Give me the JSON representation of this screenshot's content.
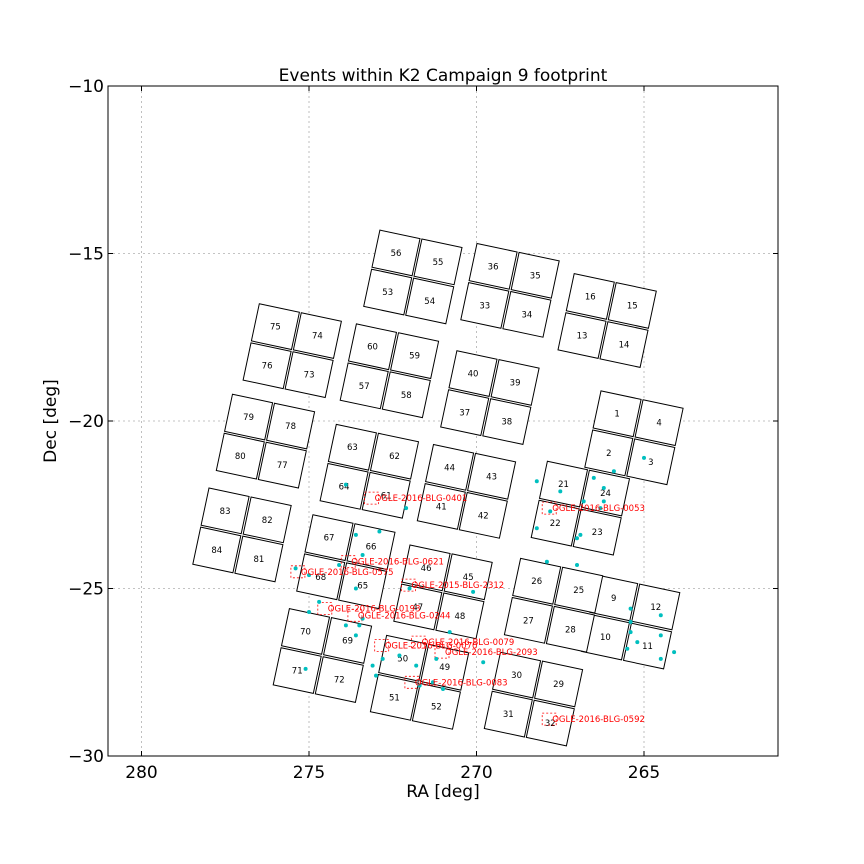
{
  "chart_data": {
    "type": "scatter",
    "title": "Events within K2 Campaign 9 footprint",
    "xlabel": "RA [deg]",
    "ylabel": "Dec [deg]",
    "xlim": [
      281,
      261
    ],
    "ylim": [
      -30,
      -10
    ],
    "xticks": [
      "280",
      "275",
      "270",
      "265"
    ],
    "yticks": [
      "−30",
      "−25",
      "−20",
      "−15",
      "−10"
    ],
    "xtick_values": [
      280,
      275,
      270,
      265
    ],
    "ytick_values": [
      -30,
      -25,
      -20,
      -15,
      -10
    ],
    "grid": true,
    "colors": {
      "chip_edge": "#000000",
      "event_point": "#00bfbf",
      "event_label": "#ff0000"
    },
    "modules": [
      {
        "ra": 265.3,
        "dec": -20.5,
        "chips": [
          {
            "id": "1",
            "q": "tl"
          },
          {
            "id": "2",
            "q": "bl"
          },
          {
            "id": "3",
            "q": "br"
          },
          {
            "id": "4",
            "q": "tr"
          }
        ]
      },
      {
        "ra": 265.4,
        "dec": -26.0,
        "chips": [
          {
            "id": "9",
            "q": "tl"
          },
          {
            "id": "10",
            "q": "bl"
          },
          {
            "id": "11",
            "q": "br"
          },
          {
            "id": "12",
            "q": "tr"
          }
        ]
      },
      {
        "ra": 266.1,
        "dec": -17.0,
        "chips": [
          {
            "id": "16",
            "q": "tl"
          },
          {
            "id": "13",
            "q": "bl"
          },
          {
            "id": "14",
            "q": "br"
          },
          {
            "id": "15",
            "q": "tr"
          }
        ]
      },
      {
        "ra": 266.9,
        "dec": -22.6,
        "chips": [
          {
            "id": "21",
            "q": "tl"
          },
          {
            "id": "22",
            "q": "bl"
          },
          {
            "id": "23",
            "q": "br"
          },
          {
            "id": "24",
            "q": "tr"
          }
        ]
      },
      {
        "ra": 267.7,
        "dec": -25.5,
        "chips": [
          {
            "id": "26",
            "q": "tl"
          },
          {
            "id": "27",
            "q": "bl"
          },
          {
            "id": "28",
            "q": "br"
          },
          {
            "id": "25",
            "q": "tr"
          }
        ]
      },
      {
        "ra": 268.3,
        "dec": -28.3,
        "chips": [
          {
            "id": "30",
            "q": "tl"
          },
          {
            "id": "31",
            "q": "bl"
          },
          {
            "id": "32",
            "q": "br"
          },
          {
            "id": "29",
            "q": "tr"
          }
        ]
      },
      {
        "ra": 269.0,
        "dec": -16.1,
        "chips": [
          {
            "id": "36",
            "q": "tl"
          },
          {
            "id": "33",
            "q": "bl"
          },
          {
            "id": "34",
            "q": "br"
          },
          {
            "id": "35",
            "q": "tr"
          }
        ]
      },
      {
        "ra": 269.6,
        "dec": -19.3,
        "chips": [
          {
            "id": "40",
            "q": "tl"
          },
          {
            "id": "37",
            "q": "bl"
          },
          {
            "id": "38",
            "q": "br"
          },
          {
            "id": "39",
            "q": "tr"
          }
        ]
      },
      {
        "ra": 270.3,
        "dec": -22.1,
        "chips": [
          {
            "id": "44",
            "q": "tl"
          },
          {
            "id": "41",
            "q": "bl"
          },
          {
            "id": "42",
            "q": "br"
          },
          {
            "id": "43",
            "q": "tr"
          }
        ]
      },
      {
        "ra": 271.0,
        "dec": -25.1,
        "chips": [
          {
            "id": "46",
            "q": "tl"
          },
          {
            "id": "47",
            "q": "bl"
          },
          {
            "id": "48",
            "q": "br"
          },
          {
            "id": "45",
            "q": "tr"
          }
        ]
      },
      {
        "ra": 271.7,
        "dec": -27.8,
        "chips": [
          {
            "id": "50",
            "q": "tl"
          },
          {
            "id": "51",
            "q": "bl"
          },
          {
            "id": "52",
            "q": "br"
          },
          {
            "id": "49",
            "q": "tr"
          }
        ]
      },
      {
        "ra": 271.9,
        "dec": -15.7,
        "chips": [
          {
            "id": "56",
            "q": "tl"
          },
          {
            "id": "53",
            "q": "bl"
          },
          {
            "id": "54",
            "q": "br"
          },
          {
            "id": "55",
            "q": "tr"
          }
        ]
      },
      {
        "ra": 272.6,
        "dec": -18.5,
        "chips": [
          {
            "id": "60",
            "q": "tl"
          },
          {
            "id": "57",
            "q": "bl"
          },
          {
            "id": "58",
            "q": "br"
          },
          {
            "id": "59",
            "q": "tr"
          }
        ]
      },
      {
        "ra": 273.2,
        "dec": -21.5,
        "chips": [
          {
            "id": "63",
            "q": "tl"
          },
          {
            "id": "64",
            "q": "bl"
          },
          {
            "id": "61",
            "q": "br"
          },
          {
            "id": "62",
            "q": "tr"
          }
        ]
      },
      {
        "ra": 273.9,
        "dec": -24.2,
        "chips": [
          {
            "id": "67",
            "q": "tl"
          },
          {
            "id": "68",
            "q": "bl"
          },
          {
            "id": "65",
            "q": "br"
          },
          {
            "id": "66",
            "q": "tr"
          }
        ]
      },
      {
        "ra": 274.6,
        "dec": -27.0,
        "chips": [
          {
            "id": "70",
            "q": "tl"
          },
          {
            "id": "71",
            "q": "bl"
          },
          {
            "id": "72",
            "q": "br"
          },
          {
            "id": "69",
            "q": "tr"
          }
        ]
      },
      {
        "ra": 275.5,
        "dec": -17.9,
        "chips": [
          {
            "id": "75",
            "q": "tl"
          },
          {
            "id": "76",
            "q": "bl"
          },
          {
            "id": "73",
            "q": "br"
          },
          {
            "id": "74",
            "q": "tr"
          }
        ]
      },
      {
        "ra": 276.3,
        "dec": -20.6,
        "chips": [
          {
            "id": "79",
            "q": "tl"
          },
          {
            "id": "80",
            "q": "bl"
          },
          {
            "id": "77",
            "q": "br"
          },
          {
            "id": "78",
            "q": "tr"
          }
        ]
      },
      {
        "ra": 277.0,
        "dec": -23.4,
        "chips": [
          {
            "id": "83",
            "q": "tl"
          },
          {
            "id": "84",
            "q": "bl"
          },
          {
            "id": "81",
            "q": "br"
          },
          {
            "id": "82",
            "q": "tr"
          }
        ]
      }
    ],
    "event_points": [
      {
        "ra": 265.0,
        "dec": -21.1
      },
      {
        "ra": 265.9,
        "dec": -21.5
      },
      {
        "ra": 266.2,
        "dec": -22.0
      },
      {
        "ra": 266.2,
        "dec": -22.4
      },
      {
        "ra": 266.3,
        "dec": -22.6
      },
      {
        "ra": 266.5,
        "dec": -21.7
      },
      {
        "ra": 266.8,
        "dec": -22.4
      },
      {
        "ra": 266.9,
        "dec": -23.4
      },
      {
        "ra": 267.0,
        "dec": -23.5
      },
      {
        "ra": 267.0,
        "dec": -24.3
      },
      {
        "ra": 267.5,
        "dec": -22.1
      },
      {
        "ra": 267.8,
        "dec": -22.7
      },
      {
        "ra": 267.9,
        "dec": -24.2
      },
      {
        "ra": 268.2,
        "dec": -23.2
      },
      {
        "ra": 268.2,
        "dec": -21.8
      },
      {
        "ra": 265.5,
        "dec": -26.8
      },
      {
        "ra": 265.4,
        "dec": -26.3
      },
      {
        "ra": 265.2,
        "dec": -26.6
      },
      {
        "ra": 265.4,
        "dec": -26.0
      },
      {
        "ra": 265.4,
        "dec": -25.6
      },
      {
        "ra": 264.5,
        "dec": -25.8
      },
      {
        "ra": 264.5,
        "dec": -26.4
      },
      {
        "ra": 264.1,
        "dec": -26.9
      },
      {
        "ra": 264.5,
        "dec": -27.1
      },
      {
        "ra": 269.8,
        "dec": -27.2
      },
      {
        "ra": 270.8,
        "dec": -26.3
      },
      {
        "ra": 271.2,
        "dec": -27.1
      },
      {
        "ra": 271.8,
        "dec": -27.3
      },
      {
        "ra": 272.3,
        "dec": -27.0
      },
      {
        "ra": 272.8,
        "dec": -27.1
      },
      {
        "ra": 273.0,
        "dec": -27.6
      },
      {
        "ra": 273.1,
        "dec": -27.3
      },
      {
        "ra": 271.7,
        "dec": -27.9
      },
      {
        "ra": 271.3,
        "dec": -27.8
      },
      {
        "ra": 271.0,
        "dec": -28.0
      },
      {
        "ra": 273.6,
        "dec": -26.4
      },
      {
        "ra": 273.5,
        "dec": -26.1
      },
      {
        "ra": 273.4,
        "dec": -25.9
      },
      {
        "ra": 273.9,
        "dec": -26.1
      },
      {
        "ra": 275.0,
        "dec": -25.7
      },
      {
        "ra": 275.1,
        "dec": -27.4
      },
      {
        "ra": 274.7,
        "dec": -25.4
      },
      {
        "ra": 273.6,
        "dec": -25.0
      },
      {
        "ra": 275.0,
        "dec": -24.6
      },
      {
        "ra": 275.4,
        "dec": -24.4
      },
      {
        "ra": 274.1,
        "dec": -24.3
      },
      {
        "ra": 273.4,
        "dec": -24.0
      },
      {
        "ra": 273.6,
        "dec": -23.4
      },
      {
        "ra": 272.9,
        "dec": -23.3
      },
      {
        "ra": 273.9,
        "dec": -21.9
      },
      {
        "ra": 272.1,
        "dec": -22.6
      },
      {
        "ra": 272.0,
        "dec": -25.0
      },
      {
        "ra": 270.1,
        "dec": -25.1
      }
    ],
    "event_labels": [
      {
        "text": "OGLE-2016-BLG-0401",
        "ra": 273.1,
        "dec": -22.3
      },
      {
        "text": "OGLE-2016-BLG-0053",
        "ra": 267.8,
        "dec": -22.6
      },
      {
        "text": "OGLE-2016-BLG-0621",
        "ra": 273.8,
        "dec": -24.2
      },
      {
        "text": "OGLE-2016-BLG-0575",
        "ra": 275.3,
        "dec": -24.5
      },
      {
        "text": "OGLE-2015-BLG-2312",
        "ra": 272.0,
        "dec": -24.9
      },
      {
        "text": "OGLE-2016-BLG-0193",
        "ra": 274.5,
        "dec": -25.6
      },
      {
        "text": "OGLE-2016-BLG-0244",
        "ra": 273.6,
        "dec": -25.8
      },
      {
        "text": "OGLE-2016-BLG-0079",
        "ra": 271.7,
        "dec": -26.6
      },
      {
        "text": "OGLE-2016-BLG-0070",
        "ra": 272.8,
        "dec": -26.7
      },
      {
        "text": "OGLE-2016-BLG-2093",
        "ra": 271.0,
        "dec": -26.9
      },
      {
        "text": "OGLE-2016-BLG-0083",
        "ra": 271.9,
        "dec": -27.8
      },
      {
        "text": "OGLE-2016-BLG-0592",
        "ra": 267.8,
        "dec": -28.9
      }
    ]
  }
}
